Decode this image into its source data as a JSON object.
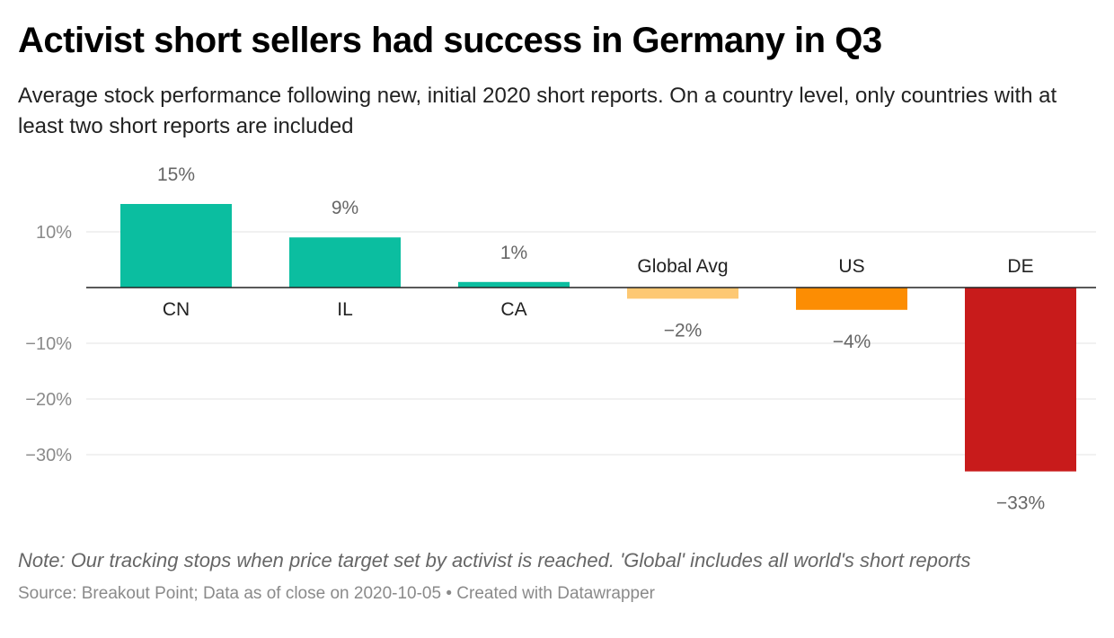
{
  "title": "Activist short sellers had success in Germany in Q3",
  "subtitle": "Average stock performance following new, initial 2020 short reports. On a country level, only countries with at least two short reports are included",
  "note": "Note: Our tracking stops when price target set by activist is reached. 'Global' includes all world's short reports",
  "footer": {
    "source": "Source: Breakout Point; Data as of close on 2020-10-05",
    "separator": " • ",
    "credit": "Created with Datawrapper"
  },
  "chart_data": {
    "type": "bar",
    "categories": [
      "CN",
      "IL",
      "CA",
      "Global Avg",
      "US",
      "DE"
    ],
    "values": [
      15,
      9,
      1,
      -2,
      -4,
      -33
    ],
    "value_labels": [
      "15%",
      "9%",
      "1%",
      "−2%",
      "−4%",
      "−33%"
    ],
    "colors": [
      "#0bbea0",
      "#0bbea0",
      "#0bbea0",
      "#fdc873",
      "#fc8d03",
      "#c81b1b"
    ],
    "y_ticks": [
      10,
      -10,
      -20,
      -30
    ],
    "y_tick_labels": [
      "10%",
      "−10%",
      "−20%",
      "−30%"
    ],
    "ylim": [
      -38,
      18
    ],
    "grid": true,
    "legend": "none"
  }
}
